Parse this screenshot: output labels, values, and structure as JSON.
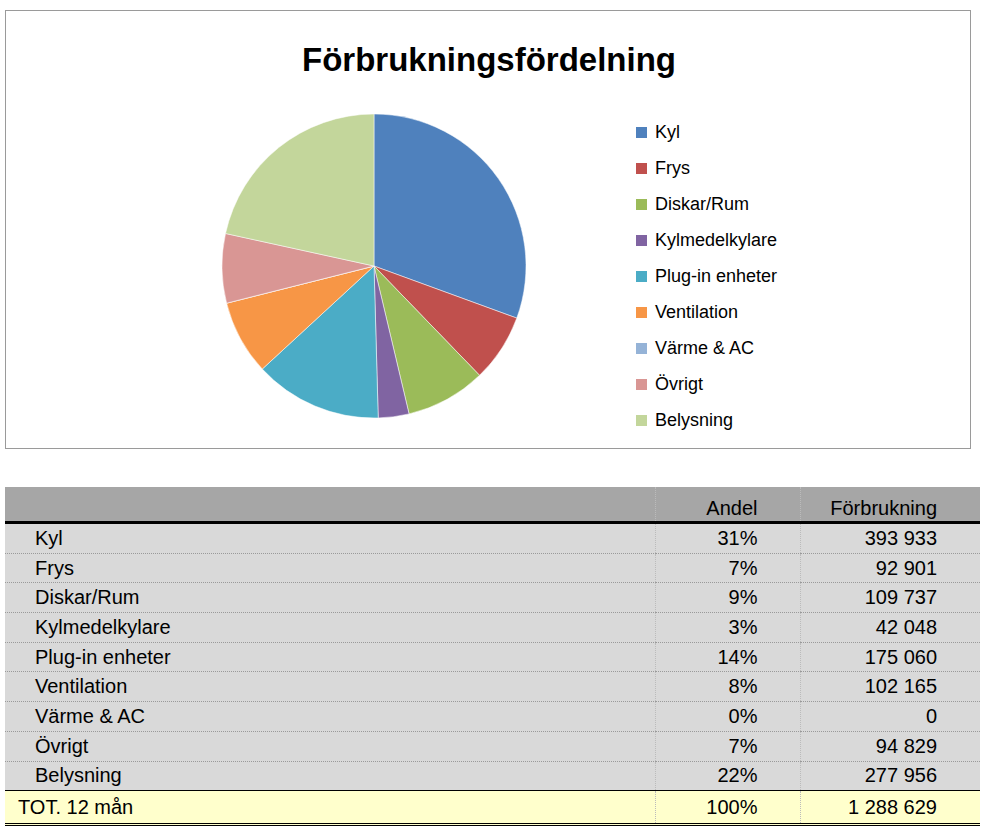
{
  "chart_data": {
    "type": "pie",
    "title": "Förbrukningsfördelning",
    "categories": [
      "Kyl",
      "Frys",
      "Diskar/Rum",
      "Kylmedelkylare",
      "Plug-in enheter",
      "Ventilation",
      "Värme & AC",
      "Övrigt",
      "Belysning"
    ],
    "values": [
      393933,
      92901,
      109737,
      42048,
      175060,
      102165,
      0,
      94829,
      277956
    ],
    "colors": [
      "#4f81bd",
      "#c0504d",
      "#9bbb59",
      "#8064a2",
      "#4bacc6",
      "#f79646",
      "#95b3d7",
      "#d99694",
      "#c3d69b"
    ],
    "legend": "right"
  },
  "table": {
    "header": [
      "",
      "Andel",
      "Förbrukning"
    ],
    "rows": [
      [
        "Kyl",
        "31%",
        "393 933"
      ],
      [
        "Frys",
        "7%",
        "92 901"
      ],
      [
        "Diskar/Rum",
        "9%",
        "109 737"
      ],
      [
        "Kylmedelkylare",
        "3%",
        "42 048"
      ],
      [
        "Plug-in enheter",
        "14%",
        "175 060"
      ],
      [
        "Ventilation",
        "8%",
        "102 165"
      ],
      [
        "Värme & AC",
        "0%",
        "0"
      ],
      [
        "Övrigt",
        "7%",
        "94 829"
      ],
      [
        "Belysning",
        "22%",
        "277 956"
      ]
    ],
    "total": [
      "TOT. 12 mån",
      "100%",
      "1 288 629"
    ]
  }
}
